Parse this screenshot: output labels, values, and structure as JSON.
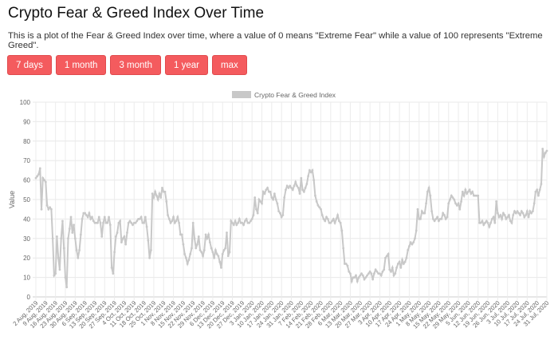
{
  "page": {
    "title": "Crypto Fear & Greed Index Over Time",
    "description": "This is a plot of the Fear & Greed Index over time, where a value of 0 means \"Extreme Fear\" while a value of 100 represents \"Extreme Greed\".",
    "buttons": [
      {
        "label": "7 days"
      },
      {
        "label": "1 month"
      },
      {
        "label": "3 month"
      },
      {
        "label": "1 year"
      },
      {
        "label": "max"
      }
    ],
    "accent_color": "#f45b5e"
  },
  "chart_data": {
    "type": "line",
    "title": "",
    "xlabel": "",
    "ylabel": "Value",
    "ylim": [
      0,
      100
    ],
    "yticks": [
      0,
      10,
      20,
      30,
      40,
      50,
      60,
      70,
      80,
      90,
      100
    ],
    "grid": true,
    "legend_position": "top",
    "line_color": "#c8c8c8",
    "x_tick_labels": [
      "2 Aug, 2019",
      "9 Aug, 2019",
      "16 Aug, 2019",
      "23 Aug, 2019",
      "30 Aug, 2019",
      "6 Sep, 2019",
      "13 Sep, 2019",
      "20 Sep, 2019",
      "27 Sep, 2019",
      "4 Oct, 2019",
      "11 Oct, 2019",
      "18 Oct, 2019",
      "25 Oct, 2019",
      "1 Nov, 2019",
      "8 Nov, 2019",
      "15 Nov, 2019",
      "22 Nov, 2019",
      "29 Nov, 2019",
      "6 Dec, 2019",
      "13 Dec, 2019",
      "20 Dec, 2019",
      "27 Dec, 2019",
      "3 Jan, 2020",
      "10 Jan, 2020",
      "17 Jan, 2020",
      "24 Jan, 2020",
      "31 Jan, 2020",
      "7 Feb, 2020",
      "14 Feb, 2020",
      "21 Feb, 2020",
      "28 Feb, 2020",
      "6 Mar, 2020",
      "13 Mar, 2020",
      "20 Mar, 2020",
      "27 Mar, 2020",
      "3 Apr, 2020",
      "10 Apr, 2020",
      "17 Apr, 2020",
      "24 Apr, 2020",
      "1 May, 2020",
      "8 May, 2020",
      "15 May, 2020",
      "22 May, 2020",
      "29 May, 2020",
      "5 Jun, 2020",
      "12 Jun, 2020",
      "19 Jun, 2020",
      "26 Jun, 2020",
      "3 Jul, 2020",
      "10 Jul, 2020",
      "17 Jul, 2020",
      "24 Jul, 2020",
      "31 Jul, 2020"
    ],
    "series": [
      {
        "name": "Crypto Fear & Greed Index",
        "values": [
          61,
          62,
          63,
          66,
          45,
          61,
          60,
          59,
          47,
          45,
          46,
          45,
          30,
          11,
          12,
          31,
          20,
          14,
          30,
          39,
          25,
          10,
          5,
          30,
          35,
          41,
          33,
          37,
          30,
          24,
          20,
          24,
          32,
          40,
          43,
          43,
          42,
          41,
          43,
          40,
          41,
          39,
          38,
          38,
          38,
          41,
          38,
          31,
          38,
          41,
          38,
          38,
          41,
          37,
          15,
          12,
          23,
          31,
          33,
          38,
          39,
          28,
          30,
          31,
          27,
          33,
          38,
          39,
          38,
          37,
          38,
          38,
          39,
          40,
          40,
          41,
          38,
          38,
          41,
          36,
          29,
          20,
          24,
          53,
          51,
          54,
          52,
          50,
          53,
          51,
          56,
          54,
          54,
          49,
          42,
          40,
          38,
          39,
          41,
          38,
          39,
          41,
          38,
          32,
          32,
          27,
          22,
          20,
          17,
          19,
          22,
          25,
          38,
          30,
          25,
          27,
          31,
          24,
          23,
          21,
          24,
          32,
          30,
          32,
          28,
          25,
          23,
          20,
          24,
          22,
          21,
          18,
          15,
          22,
          24,
          25,
          33,
          21,
          23,
          39,
          38,
          37,
          39,
          37,
          38,
          40,
          38,
          38,
          37,
          39,
          40,
          38,
          38,
          39,
          40,
          42,
          51,
          45,
          43,
          50,
          49,
          48,
          54,
          53,
          55,
          56,
          54,
          54,
          51,
          50,
          53,
          50,
          48,
          44,
          43,
          41,
          42,
          51,
          55,
          57,
          56,
          57,
          56,
          55,
          57,
          59,
          57,
          56,
          53,
          61,
          55,
          54,
          56,
          58,
          62,
          65,
          64,
          65,
          60,
          52,
          49,
          47,
          46,
          45,
          42,
          40,
          39,
          41,
          40,
          38,
          38,
          39,
          40,
          38,
          40,
          42,
          39,
          38,
          34,
          25,
          17,
          17,
          16,
          13,
          12,
          8,
          10,
          10,
          11,
          8,
          10,
          11,
          12,
          11,
          9,
          10,
          11,
          12,
          13,
          12,
          9,
          12,
          14,
          13,
          12,
          12,
          11,
          13,
          14,
          20,
          21,
          22,
          14,
          13,
          15,
          11,
          12,
          15,
          17,
          18,
          15,
          19,
          17,
          18,
          20,
          24,
          26,
          28,
          27,
          28,
          30,
          34,
          45,
          40,
          40,
          44,
          43,
          43,
          48,
          54,
          56,
          52,
          44,
          40,
          39,
          40,
          41,
          39,
          40,
          40,
          43,
          42,
          40,
          41,
          48,
          50,
          52,
          51,
          50,
          48,
          47,
          48,
          45,
          49,
          54,
          52,
          55,
          53,
          54,
          55,
          53,
          54,
          52,
          52,
          52,
          52,
          38,
          38,
          39,
          37,
          38,
          39,
          38,
          36,
          38,
          40,
          41,
          38,
          49,
          43,
          41,
          42,
          40,
          43,
          42,
          40,
          41,
          42,
          39,
          38,
          42,
          44,
          43,
          44,
          43,
          42,
          44,
          43,
          41,
          42,
          44,
          41,
          44,
          43,
          44,
          48,
          54,
          55,
          52,
          55,
          58,
          76,
          72,
          74,
          75
        ]
      }
    ]
  }
}
